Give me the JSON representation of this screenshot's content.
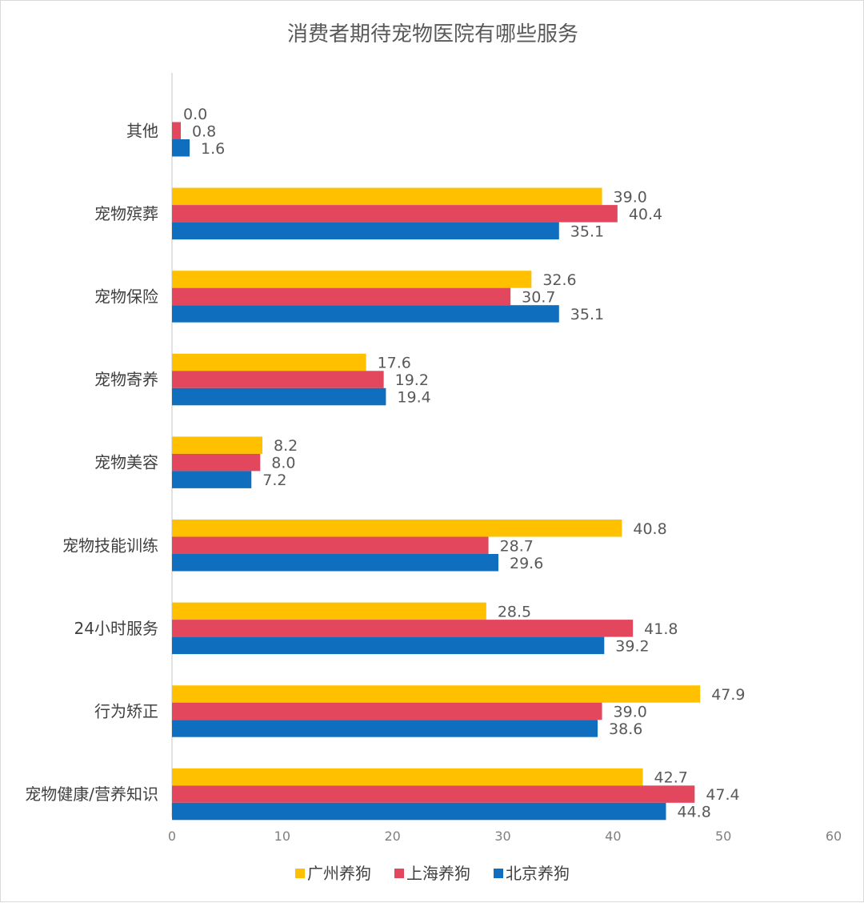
{
  "chart_data": {
    "type": "bar",
    "orientation": "horizontal",
    "title": "消费者期待宠物医院有哪些服务",
    "xlabel": "",
    "ylabel": "",
    "categories": [
      "其他",
      "宠物殡葬",
      "宠物保险",
      "宠物寄养",
      "宠物美容",
      "宠物技能训练",
      "24小时服务",
      "行为矫正",
      "宠物健康/营养知识"
    ],
    "series": [
      {
        "name": "广州养狗",
        "color": "#FFC000",
        "values": [
          0.0,
          39.0,
          32.6,
          17.6,
          8.2,
          40.8,
          28.5,
          47.9,
          42.7
        ],
        "labels": [
          "0.0",
          "39.0",
          "32.6",
          "17.6",
          "8.2",
          "40.8",
          "28.5",
          "47.9",
          "42.7"
        ]
      },
      {
        "name": "上海养狗",
        "color": "#E2475E",
        "values": [
          0.8,
          40.4,
          30.7,
          19.2,
          8.0,
          28.7,
          41.8,
          39.0,
          47.4
        ],
        "labels": [
          "0.8",
          "40.4",
          "30.7",
          "19.2",
          "8.0",
          "28.7",
          "41.8",
          "39.0",
          "47.4"
        ]
      },
      {
        "name": "北京养狗",
        "color": "#0F6FBE",
        "values": [
          1.6,
          35.1,
          35.1,
          19.4,
          7.2,
          29.6,
          39.2,
          38.6,
          44.8
        ],
        "labels": [
          "1.6",
          "35.1",
          "35.1",
          "19.4",
          "7.2",
          "29.6",
          "39.2",
          "38.6",
          "44.8"
        ]
      }
    ],
    "xlim": [
      0,
      60
    ],
    "ticks": [
      "0",
      "10",
      "20",
      "30",
      "40",
      "50",
      "60"
    ],
    "grid": false,
    "legend_position": "bottom",
    "axis_color": "#d9d9d9"
  }
}
